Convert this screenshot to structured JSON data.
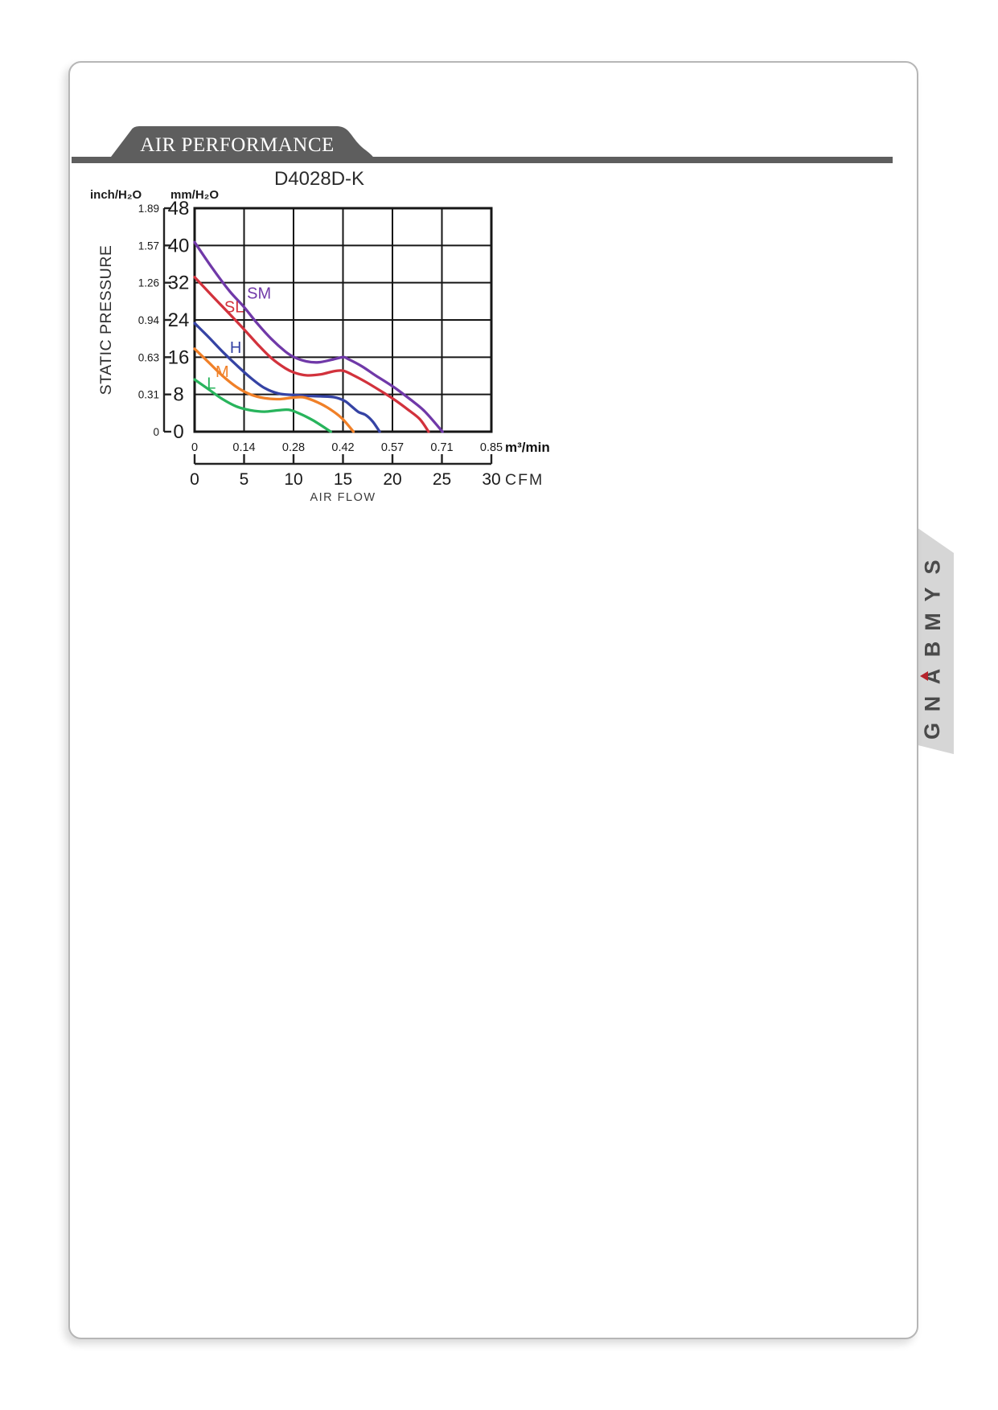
{
  "page": {
    "header_title": "AIR PERFORMANCE"
  },
  "logo": {
    "name": "SYMBANG",
    "letters": [
      "S",
      "Y",
      "M",
      "B",
      "A",
      "N",
      "G"
    ],
    "letter_color": "#4a4a4a",
    "accent_color": "#b5232b",
    "accent_letter_index": 4
  },
  "chart_data": {
    "type": "line",
    "title": "D4028D-K",
    "y_title": "STATIC PRESSURE",
    "x_title": "AIR FLOW",
    "grid": true,
    "y_axis_primary": {
      "label": "inch/H₂O",
      "ticks": [
        "1.89",
        "1.57",
        "1.26",
        "0.94",
        "0.63",
        "0.31",
        "0"
      ]
    },
    "y_axis_secondary": {
      "label": "mm/H₂O",
      "ticks": [
        "48",
        "40",
        "32",
        "24",
        "16",
        "8",
        "0"
      ],
      "range": [
        0,
        48
      ]
    },
    "x_axis_primary": {
      "label": "m³/min",
      "ticks": [
        "0",
        "0.14",
        "0.28",
        "0.42",
        "0.57",
        "0.71",
        "0.85"
      ],
      "range": [
        0,
        0.85
      ]
    },
    "x_axis_secondary": {
      "label": "CFM",
      "ticks": [
        "0",
        "5",
        "10",
        "15",
        "20",
        "25",
        "30"
      ],
      "range": [
        0,
        30
      ]
    },
    "series": [
      {
        "name": "SM",
        "color": "#7039a8",
        "label_pos": [
          0.15,
          28.6
        ],
        "points": [
          [
            0,
            40.7
          ],
          [
            0.05,
            35.2
          ],
          [
            0.1,
            30.2
          ],
          [
            0.14,
            26.9
          ],
          [
            0.18,
            23.2
          ],
          [
            0.22,
            19.9
          ],
          [
            0.26,
            17.2
          ],
          [
            0.285,
            16.0
          ],
          [
            0.32,
            15.1
          ],
          [
            0.355,
            14.9
          ],
          [
            0.39,
            15.4
          ],
          [
            0.425,
            16.0
          ],
          [
            0.44,
            15.6
          ],
          [
            0.48,
            14.0
          ],
          [
            0.52,
            12.0
          ],
          [
            0.57,
            9.6
          ],
          [
            0.62,
            6.8
          ],
          [
            0.66,
            4.3
          ],
          [
            0.71,
            0
          ]
        ]
      },
      {
        "name": "SL",
        "color": "#d2323c",
        "label_pos": [
          0.085,
          25.6
        ],
        "points": [
          [
            0,
            33.2
          ],
          [
            0.05,
            29.2
          ],
          [
            0.1,
            25.3
          ],
          [
            0.14,
            22.1
          ],
          [
            0.18,
            18.8
          ],
          [
            0.22,
            15.8
          ],
          [
            0.26,
            13.6
          ],
          [
            0.285,
            12.7
          ],
          [
            0.32,
            12.1
          ],
          [
            0.36,
            12.3
          ],
          [
            0.4,
            13.0
          ],
          [
            0.425,
            13.1
          ],
          [
            0.45,
            12.3
          ],
          [
            0.49,
            10.7
          ],
          [
            0.53,
            8.9
          ],
          [
            0.57,
            7.0
          ],
          [
            0.61,
            4.8
          ],
          [
            0.645,
            2.7
          ],
          [
            0.67,
            0
          ]
        ]
      },
      {
        "name": "H",
        "color": "#3543a4",
        "label_pos": [
          0.101,
          16.9
        ],
        "points": [
          [
            0,
            23.3
          ],
          [
            0.04,
            20.3
          ],
          [
            0.08,
            17.2
          ],
          [
            0.12,
            14.3
          ],
          [
            0.16,
            11.6
          ],
          [
            0.2,
            9.4
          ],
          [
            0.24,
            8.2
          ],
          [
            0.28,
            7.9
          ],
          [
            0.32,
            7.7
          ],
          [
            0.36,
            7.6
          ],
          [
            0.4,
            7.4
          ],
          [
            0.43,
            6.6
          ],
          [
            0.45,
            5.4
          ],
          [
            0.47,
            4.2
          ],
          [
            0.49,
            3.6
          ],
          [
            0.51,
            2.2
          ],
          [
            0.53,
            0
          ]
        ]
      },
      {
        "name": "M",
        "color": "#f08028",
        "label_pos": [
          0.06,
          11.7
        ],
        "points": [
          [
            0,
            17.8
          ],
          [
            0.04,
            14.9
          ],
          [
            0.08,
            12.0
          ],
          [
            0.12,
            9.6
          ],
          [
            0.16,
            8.0
          ],
          [
            0.2,
            7.2
          ],
          [
            0.24,
            7.0
          ],
          [
            0.28,
            7.3
          ],
          [
            0.31,
            7.4
          ],
          [
            0.34,
            6.7
          ],
          [
            0.38,
            5.2
          ],
          [
            0.42,
            3.0
          ],
          [
            0.455,
            0
          ]
        ]
      },
      {
        "name": "L",
        "color": "#28b45c",
        "label_pos": [
          0.035,
          9.2
        ],
        "points": [
          [
            0,
            11.2
          ],
          [
            0.04,
            9.1
          ],
          [
            0.08,
            7.0
          ],
          [
            0.12,
            5.4
          ],
          [
            0.16,
            4.6
          ],
          [
            0.2,
            4.3
          ],
          [
            0.24,
            4.6
          ],
          [
            0.27,
            4.7
          ],
          [
            0.3,
            3.9
          ],
          [
            0.34,
            2.4
          ],
          [
            0.39,
            0
          ]
        ]
      }
    ]
  }
}
